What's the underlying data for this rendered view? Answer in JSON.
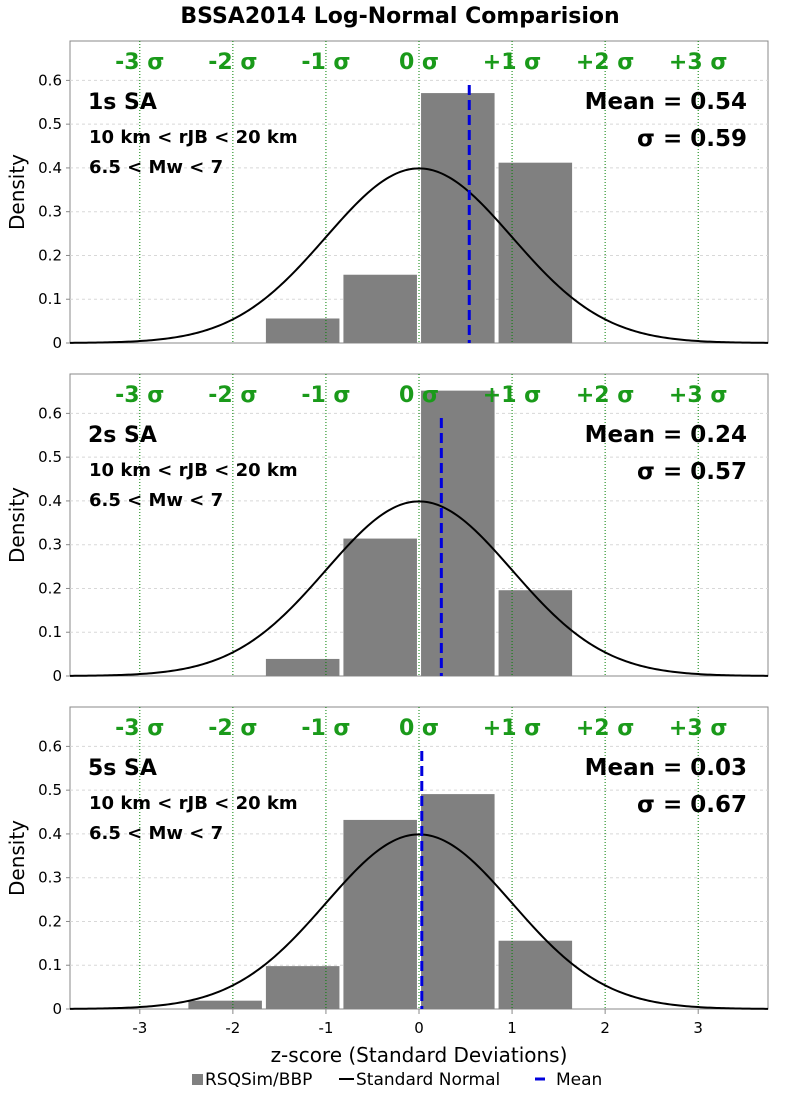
{
  "title": "BSSA2014 Log-Normal Comparision",
  "xlabel": "z-score (Standard Deviations)",
  "ylabel": "Density",
  "colors": {
    "bars": "#808080",
    "normal_curve": "#000000",
    "mean_line": "#0000dd",
    "sigma_lines": "#008000",
    "sigma_labels": "#1a9a1a"
  },
  "legend": {
    "placement": "bottom-center",
    "items": [
      {
        "label": "RSQSim/BBP",
        "marker": "square"
      },
      {
        "label": "Standard Normal",
        "marker": "line"
      },
      {
        "label": "Mean",
        "marker": "dash"
      }
    ]
  },
  "sigma_labels": [
    "-3 σ",
    "-2 σ",
    "-1 σ",
    "0 σ",
    "+1 σ",
    "+2 σ",
    "+3 σ"
  ],
  "sigma_positions": [
    -3,
    -2,
    -1,
    0,
    1,
    2,
    3
  ],
  "x_ticks": [
    "-3",
    "-2",
    "-1",
    "0",
    "1",
    "2",
    "3"
  ],
  "y_ticks": [
    "0",
    "0.1",
    "0.2",
    "0.3",
    "0.4",
    "0.5",
    "0.6"
  ],
  "chart_data": [
    {
      "type": "bar",
      "period_label": "1s SA",
      "distance_label": "10 km < rJB < 20 km",
      "magnitude_label": "6.5 < Mw < 7",
      "mean_label": "Mean = 0.54",
      "sigma_label": "σ = 0.59",
      "mean": 0.54,
      "xlim": [
        -3.75,
        3.75
      ],
      "ylim": [
        0,
        0.69
      ],
      "bin_width": 0.833,
      "bins": [
        {
          "center": -1.25,
          "density": 0.056
        },
        {
          "center": -0.417,
          "density": 0.156
        },
        {
          "center": 0.417,
          "density": 0.571
        },
        {
          "center": 1.25,
          "density": 0.412
        }
      ],
      "grid": true
    },
    {
      "type": "bar",
      "period_label": "2s SA",
      "distance_label": "10 km < rJB < 20 km",
      "magnitude_label": "6.5 < Mw < 7",
      "mean_label": "Mean = 0.24",
      "sigma_label": "σ = 0.57",
      "mean": 0.24,
      "xlim": [
        -3.75,
        3.75
      ],
      "ylim": [
        0,
        0.69
      ],
      "bin_width": 0.833,
      "bins": [
        {
          "center": -1.25,
          "density": 0.039
        },
        {
          "center": -0.417,
          "density": 0.314
        },
        {
          "center": 0.417,
          "density": 0.652
        },
        {
          "center": 1.25,
          "density": 0.196
        }
      ],
      "grid": true
    },
    {
      "type": "bar",
      "period_label": "5s SA",
      "distance_label": "10 km < rJB < 20 km",
      "magnitude_label": "6.5 < Mw < 7",
      "mean_label": "Mean = 0.03",
      "sigma_label": "σ = 0.67",
      "mean": 0.03,
      "xlim": [
        -3.75,
        3.75
      ],
      "ylim": [
        0,
        0.69
      ],
      "bin_width": 0.833,
      "bins": [
        {
          "center": -2.083,
          "density": 0.019
        },
        {
          "center": -1.25,
          "density": 0.098
        },
        {
          "center": -0.417,
          "density": 0.432
        },
        {
          "center": 0.417,
          "density": 0.491
        },
        {
          "center": 1.25,
          "density": 0.156
        }
      ],
      "grid": true
    }
  ]
}
